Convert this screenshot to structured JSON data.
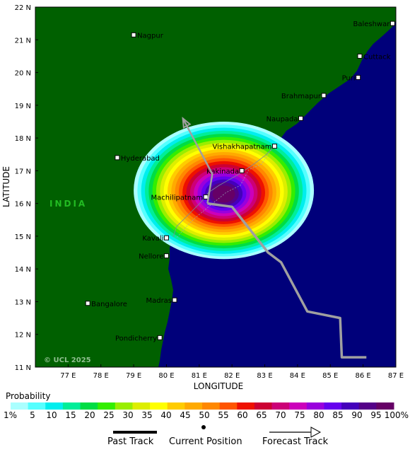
{
  "map": {
    "region_label": "INDIA",
    "copyright": "© UCL 2025",
    "xlabel": "LONGITUDE",
    "ylabel": "LATITUDE",
    "lon_range": [
      76,
      87
    ],
    "lat_range": [
      11,
      22
    ],
    "lon_ticks": [
      "77 E",
      "78 E",
      "79 E",
      "80 E",
      "81 E",
      "82 E",
      "83 E",
      "84 E",
      "85 E",
      "86 E",
      "87 E"
    ],
    "lat_ticks": [
      "22 N",
      "21 N",
      "20 N",
      "19 N",
      "18 N",
      "17 N",
      "16 N",
      "15 N",
      "14 N",
      "13 N",
      "12 N",
      "11 N"
    ],
    "colors": {
      "land": "#006000",
      "sea": "#00007a",
      "track": "#a0a0a0"
    },
    "cities": [
      {
        "name": "Baleshwar",
        "lon": 86.9,
        "lat": 21.5,
        "anchor": "end"
      },
      {
        "name": "Nagpur",
        "lon": 79.0,
        "lat": 21.15,
        "anchor": "start"
      },
      {
        "name": "Cuttack",
        "lon": 85.9,
        "lat": 20.5,
        "anchor": "start"
      },
      {
        "name": "Puri",
        "lon": 85.85,
        "lat": 19.85,
        "anchor": "end"
      },
      {
        "name": "Brahmapur",
        "lon": 84.8,
        "lat": 19.3,
        "anchor": "end"
      },
      {
        "name": "Naupada",
        "lon": 84.1,
        "lat": 18.6,
        "anchor": "end"
      },
      {
        "name": "Vishakhapatnam",
        "lon": 83.3,
        "lat": 17.75,
        "anchor": "end"
      },
      {
        "name": "Hyderabad",
        "lon": 78.5,
        "lat": 17.4,
        "anchor": "start"
      },
      {
        "name": "Kakinada",
        "lon": 82.3,
        "lat": 17.0,
        "anchor": "end"
      },
      {
        "name": "Machilipatnam",
        "lon": 81.2,
        "lat": 16.2,
        "anchor": "end"
      },
      {
        "name": "Kavali",
        "lon": 80.0,
        "lat": 14.95,
        "anchor": "end"
      },
      {
        "name": "Nellore",
        "lon": 80.0,
        "lat": 14.4,
        "anchor": "end"
      },
      {
        "name": "Madras",
        "lon": 80.25,
        "lat": 13.05,
        "anchor": "end"
      },
      {
        "name": "Bangalore",
        "lon": 77.6,
        "lat": 12.95,
        "anchor": "start"
      },
      {
        "name": "Pondicherry",
        "lon": 79.8,
        "lat": 11.9,
        "anchor": "end"
      }
    ],
    "past_track": [
      [
        86.1,
        11.3
      ],
      [
        85.35,
        11.3
      ],
      [
        85.3,
        12.5
      ],
      [
        84.3,
        12.7
      ],
      [
        83.5,
        14.2
      ],
      [
        83.1,
        14.5
      ],
      [
        82.0,
        15.9
      ],
      [
        81.25,
        16.0
      ]
    ],
    "forecast_track": [
      [
        81.25,
        16.0
      ],
      [
        81.4,
        16.9
      ],
      [
        80.5,
        18.6
      ]
    ],
    "current_position": [
      81.25,
      16.0
    ],
    "probability_center": [
      81.75,
      16.4
    ],
    "probability_radius_deg": [
      2.75,
      2.0
    ]
  },
  "scale": {
    "title": "Probability",
    "labels": [
      "1%",
      "5",
      "10",
      "15",
      "20",
      "25",
      "30",
      "35",
      "40",
      "45",
      "50",
      "55",
      "60",
      "65",
      "70",
      "75",
      "80",
      "85",
      "90",
      "95",
      "100%"
    ],
    "colors": [
      "#aaffff",
      "#55ffff",
      "#00eeee",
      "#00ee99",
      "#00dd44",
      "#33ee00",
      "#99ee00",
      "#ddee00",
      "#ffff00",
      "#ffcc00",
      "#ffaa00",
      "#ff8800",
      "#ff5500",
      "#ee1100",
      "#cc0033",
      "#cc0077",
      "#cc00bb",
      "#9900dd",
      "#6600ee",
      "#4400bb",
      "#550088",
      "#660066"
    ]
  },
  "legend": {
    "past_track": "Past Track",
    "current_position": "Current Position",
    "forecast_track": "Forecast Track"
  }
}
